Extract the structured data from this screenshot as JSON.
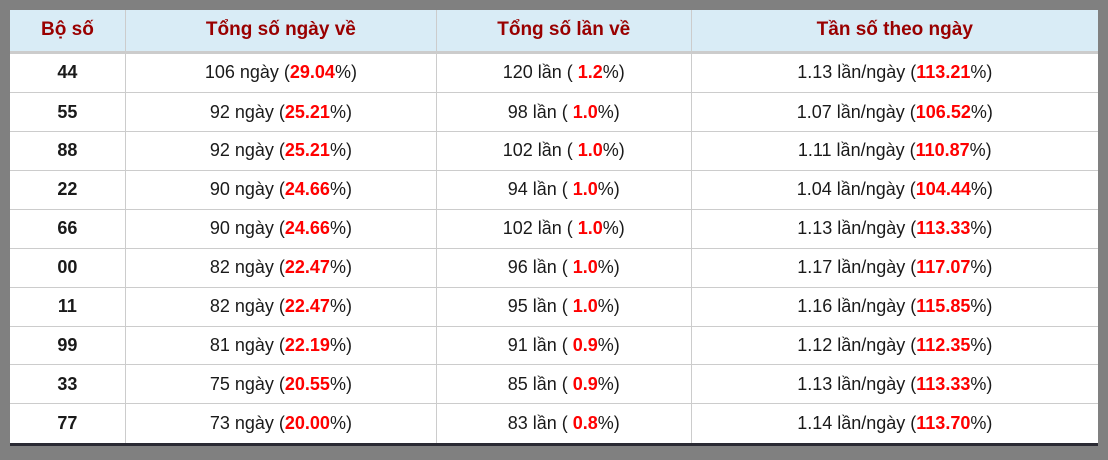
{
  "colors": {
    "header_bg": "#d9ecf6",
    "header_text": "#990000",
    "highlight_red": "#ff0000",
    "frame_gray": "#808080",
    "grid_line": "#cccccc"
  },
  "table": {
    "columns": [
      {
        "label": "Bộ số"
      },
      {
        "label": "Tổng số ngày về"
      },
      {
        "label": "Tổng số lần về"
      },
      {
        "label": "Tần số theo ngày"
      }
    ],
    "rows": [
      {
        "pair": "44",
        "cells": [
          [
            {
              "t": "106 ngày ("
            },
            {
              "t": "29.04",
              "red": true
            },
            {
              "t": "%)"
            }
          ],
          [
            {
              "t": "120 lần ( "
            },
            {
              "t": "1.2",
              "red": true
            },
            {
              "t": "%)"
            }
          ],
          [
            {
              "t": "1.13 lần/ngày ("
            },
            {
              "t": "113.21",
              "red": true
            },
            {
              "t": "%)"
            }
          ]
        ]
      },
      {
        "pair": "55",
        "cells": [
          [
            {
              "t": "92 ngày ("
            },
            {
              "t": "25.21",
              "red": true
            },
            {
              "t": "%)"
            }
          ],
          [
            {
              "t": "98 lần ( "
            },
            {
              "t": "1.0",
              "red": true
            },
            {
              "t": "%)"
            }
          ],
          [
            {
              "t": "1.07 lần/ngày ("
            },
            {
              "t": "106.52",
              "red": true
            },
            {
              "t": "%)"
            }
          ]
        ]
      },
      {
        "pair": "88",
        "cells": [
          [
            {
              "t": "92 ngày ("
            },
            {
              "t": "25.21",
              "red": true
            },
            {
              "t": "%)"
            }
          ],
          [
            {
              "t": "102 lần ( "
            },
            {
              "t": "1.0",
              "red": true
            },
            {
              "t": "%)"
            }
          ],
          [
            {
              "t": "1.11 lần/ngày ("
            },
            {
              "t": "110.87",
              "red": true
            },
            {
              "t": "%)"
            }
          ]
        ]
      },
      {
        "pair": "22",
        "cells": [
          [
            {
              "t": "90 ngày ("
            },
            {
              "t": "24.66",
              "red": true
            },
            {
              "t": "%)"
            }
          ],
          [
            {
              "t": "94 lần ( "
            },
            {
              "t": "1.0",
              "red": true
            },
            {
              "t": "%)"
            }
          ],
          [
            {
              "t": "1.04 lần/ngày ("
            },
            {
              "t": "104.44",
              "red": true
            },
            {
              "t": "%)"
            }
          ]
        ]
      },
      {
        "pair": "66",
        "cells": [
          [
            {
              "t": "90 ngày ("
            },
            {
              "t": "24.66",
              "red": true
            },
            {
              "t": "%)"
            }
          ],
          [
            {
              "t": "102 lần ( "
            },
            {
              "t": "1.0",
              "red": true
            },
            {
              "t": "%)"
            }
          ],
          [
            {
              "t": "1.13 lần/ngày ("
            },
            {
              "t": "113.33",
              "red": true
            },
            {
              "t": "%)"
            }
          ]
        ]
      },
      {
        "pair": "00",
        "cells": [
          [
            {
              "t": "82 ngày ("
            },
            {
              "t": "22.47",
              "red": true
            },
            {
              "t": "%)"
            }
          ],
          [
            {
              "t": "96 lần ( "
            },
            {
              "t": "1.0",
              "red": true
            },
            {
              "t": "%)"
            }
          ],
          [
            {
              "t": "1.17 lần/ngày ("
            },
            {
              "t": "117.07",
              "red": true
            },
            {
              "t": "%)"
            }
          ]
        ]
      },
      {
        "pair": "11",
        "cells": [
          [
            {
              "t": "82 ngày ("
            },
            {
              "t": "22.47",
              "red": true
            },
            {
              "t": "%)"
            }
          ],
          [
            {
              "t": "95 lần ( "
            },
            {
              "t": "1.0",
              "red": true
            },
            {
              "t": "%)"
            }
          ],
          [
            {
              "t": "1.16 lần/ngày ("
            },
            {
              "t": "115.85",
              "red": true
            },
            {
              "t": "%)"
            }
          ]
        ]
      },
      {
        "pair": "99",
        "cells": [
          [
            {
              "t": "81 ngày ("
            },
            {
              "t": "22.19",
              "red": true
            },
            {
              "t": "%)"
            }
          ],
          [
            {
              "t": "91 lần ( "
            },
            {
              "t": "0.9",
              "red": true
            },
            {
              "t": "%)"
            }
          ],
          [
            {
              "t": "1.12 lần/ngày ("
            },
            {
              "t": "112.35",
              "red": true
            },
            {
              "t": "%)"
            }
          ]
        ]
      },
      {
        "pair": "33",
        "cells": [
          [
            {
              "t": "75 ngày ("
            },
            {
              "t": "20.55",
              "red": true
            },
            {
              "t": "%)"
            }
          ],
          [
            {
              "t": "85 lần ( "
            },
            {
              "t": "0.9",
              "red": true
            },
            {
              "t": "%)"
            }
          ],
          [
            {
              "t": "1.13 lần/ngày ("
            },
            {
              "t": "113.33",
              "red": true
            },
            {
              "t": "%)"
            }
          ]
        ]
      },
      {
        "pair": "77",
        "cells": [
          [
            {
              "t": "73 ngày ("
            },
            {
              "t": "20.00",
              "red": true
            },
            {
              "t": "%)"
            }
          ],
          [
            {
              "t": "83 lần ( "
            },
            {
              "t": "0.8",
              "red": true
            },
            {
              "t": "%)"
            }
          ],
          [
            {
              "t": "1.14 lần/ngày ("
            },
            {
              "t": "113.70",
              "red": true
            },
            {
              "t": "%)"
            }
          ]
        ]
      }
    ]
  }
}
